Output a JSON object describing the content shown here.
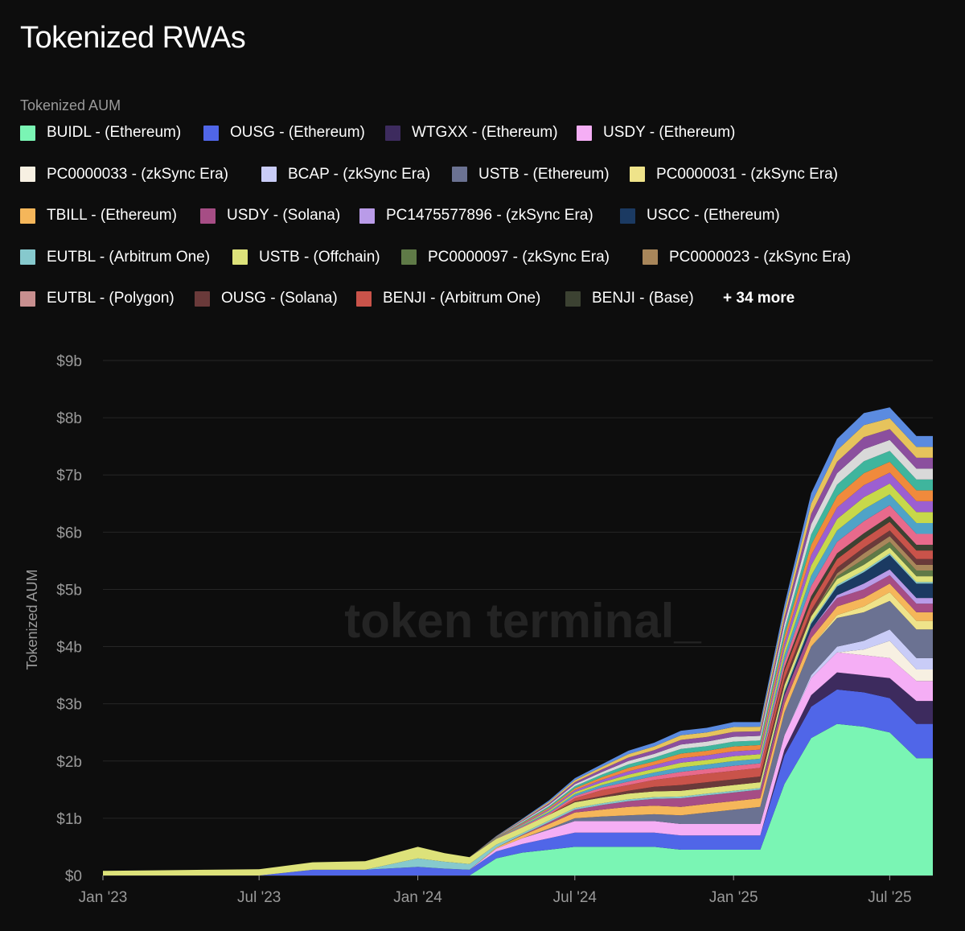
{
  "title": "Tokenized RWAs",
  "legend_title": "Tokenized AUM",
  "legend_more": "+ 34 more",
  "watermark": "token terminal_",
  "chart_data": {
    "type": "area",
    "stacked": true,
    "ylabel": "Tokenized AUM",
    "ylim": [
      0,
      9
    ],
    "y_ticks": [
      "$0",
      "$1b",
      "$2b",
      "$3b",
      "$4b",
      "$5b",
      "$6b",
      "$7b",
      "$8b",
      "$9b"
    ],
    "x_ticks": [
      "Jan '23",
      "Jul '23",
      "Jan '24",
      "Jul '24",
      "Jan '25",
      "Jul '25"
    ],
    "x": [
      "2023-01",
      "2023-03",
      "2023-05",
      "2023-07",
      "2023-09",
      "2023-11",
      "2024-01",
      "2024-02",
      "2024-03",
      "2024-04",
      "2024-05",
      "2024-06",
      "2024-07",
      "2024-08",
      "2024-09",
      "2024-10",
      "2024-11",
      "2024-12",
      "2025-01",
      "2025-02",
      "2025-03",
      "2025-04",
      "2025-05",
      "2025-06",
      "2025-07",
      "2025-08"
    ],
    "series": [
      {
        "name": "BUIDL - (Ethereum)",
        "color": "#7af5b4",
        "values": [
          0,
          0,
          0,
          0,
          0,
          0,
          0,
          0,
          0,
          0.3,
          0.4,
          0.45,
          0.5,
          0.5,
          0.5,
          0.5,
          0.45,
          0.45,
          0.45,
          0.45,
          1.6,
          2.4,
          2.65,
          2.6,
          2.5,
          2.05
        ]
      },
      {
        "name": "OUSG - (Ethereum)",
        "color": "#5066e8",
        "values": [
          0,
          0,
          0,
          0,
          0.1,
          0.1,
          0.15,
          0.12,
          0.1,
          0.12,
          0.15,
          0.2,
          0.25,
          0.25,
          0.25,
          0.25,
          0.25,
          0.25,
          0.25,
          0.25,
          0.5,
          0.55,
          0.6,
          0.6,
          0.6,
          0.6
        ]
      },
      {
        "name": "WTGXX - (Ethereum)",
        "color": "#3d2b5e",
        "values": [
          0,
          0,
          0,
          0,
          0,
          0,
          0,
          0,
          0,
          0,
          0,
          0,
          0,
          0,
          0,
          0,
          0,
          0,
          0,
          0,
          0.1,
          0.2,
          0.3,
          0.3,
          0.35,
          0.4
        ]
      },
      {
        "name": "USDY - (Ethereum)",
        "color": "#f5aef5",
        "values": [
          0,
          0,
          0,
          0,
          0,
          0,
          0,
          0,
          0,
          0.05,
          0.1,
          0.15,
          0.2,
          0.2,
          0.2,
          0.2,
          0.2,
          0.2,
          0.2,
          0.2,
          0.25,
          0.3,
          0.35,
          0.35,
          0.35,
          0.35
        ]
      },
      {
        "name": "PC0000033 - (zkSync Era)",
        "color": "#f7f0e2",
        "values": [
          0,
          0,
          0,
          0,
          0,
          0,
          0,
          0,
          0,
          0,
          0,
          0,
          0,
          0,
          0,
          0,
          0,
          0,
          0,
          0,
          0,
          0,
          0,
          0.1,
          0.3,
          0.2
        ]
      },
      {
        "name": "BCAP - (zkSync Era)",
        "color": "#c9ccf7",
        "values": [
          0,
          0,
          0,
          0,
          0,
          0,
          0,
          0,
          0,
          0,
          0,
          0,
          0,
          0,
          0,
          0,
          0,
          0,
          0,
          0,
          0,
          0.05,
          0.1,
          0.15,
          0.2,
          0.2
        ]
      },
      {
        "name": "USTB - (Ethereum)",
        "color": "#6b7292",
        "values": [
          0,
          0,
          0,
          0,
          0,
          0,
          0,
          0,
          0,
          0,
          0,
          0.02,
          0.05,
          0.08,
          0.1,
          0.12,
          0.15,
          0.2,
          0.25,
          0.3,
          0.4,
          0.5,
          0.5,
          0.5,
          0.5,
          0.5
        ]
      },
      {
        "name": "PC0000031 - (zkSync Era)",
        "color": "#efe38a",
        "values": [
          0,
          0,
          0,
          0,
          0,
          0,
          0,
          0,
          0,
          0,
          0,
          0,
          0,
          0,
          0,
          0,
          0,
          0,
          0,
          0,
          0,
          0,
          0.05,
          0.1,
          0.15,
          0.15
        ]
      },
      {
        "name": "TBILL - (Ethereum)",
        "color": "#f5b65a",
        "values": [
          0,
          0,
          0,
          0,
          0,
          0,
          0,
          0,
          0,
          0.02,
          0.05,
          0.08,
          0.1,
          0.12,
          0.15,
          0.15,
          0.15,
          0.15,
          0.15,
          0.15,
          0.15,
          0.15,
          0.15,
          0.15,
          0.15,
          0.15
        ]
      },
      {
        "name": "USDY - (Solana)",
        "color": "#a64d85",
        "values": [
          0,
          0,
          0,
          0,
          0,
          0,
          0,
          0,
          0,
          0,
          0.01,
          0.03,
          0.05,
          0.08,
          0.1,
          0.12,
          0.15,
          0.15,
          0.15,
          0.15,
          0.15,
          0.15,
          0.15,
          0.15,
          0.15,
          0.15
        ]
      },
      {
        "name": "PC1475577896 - (zkSync Era)",
        "color": "#b99be8",
        "values": [
          0,
          0,
          0,
          0,
          0,
          0,
          0,
          0,
          0,
          0,
          0,
          0,
          0,
          0,
          0,
          0,
          0,
          0,
          0,
          0,
          0,
          0,
          0.05,
          0.1,
          0.1,
          0.1
        ]
      },
      {
        "name": "USCC - (Ethereum)",
        "color": "#1b3a62",
        "values": [
          0,
          0,
          0,
          0,
          0,
          0,
          0,
          0,
          0,
          0,
          0,
          0,
          0,
          0,
          0,
          0,
          0,
          0,
          0,
          0,
          0.05,
          0.1,
          0.15,
          0.2,
          0.25,
          0.25
        ]
      },
      {
        "name": "EUTBL - (Arbitrum One)",
        "color": "#86c9cd",
        "values": [
          0,
          0,
          0,
          0,
          0,
          0,
          0.15,
          0.12,
          0.1,
          0.05,
          0.03,
          0.03,
          0.03,
          0.03,
          0.03,
          0.03,
          0.03,
          0.03,
          0.03,
          0.03,
          0.03,
          0.03,
          0.03,
          0.03,
          0.03,
          0.03
        ]
      },
      {
        "name": "USTB - (Offchain)",
        "color": "#dde27a",
        "values": [
          0.08,
          0.09,
          0.1,
          0.11,
          0.13,
          0.15,
          0.2,
          0.15,
          0.12,
          0.1,
          0.1,
          0.1,
          0.1,
          0.1,
          0.1,
          0.1,
          0.1,
          0.1,
          0.1,
          0.1,
          0.1,
          0.1,
          0.1,
          0.1,
          0.1,
          0.1
        ]
      },
      {
        "name": "PC0000097 - (zkSync Era)",
        "color": "#5f7a47",
        "values": [
          0,
          0,
          0,
          0,
          0,
          0,
          0,
          0,
          0,
          0,
          0,
          0,
          0,
          0,
          0,
          0,
          0,
          0,
          0,
          0,
          0,
          0,
          0.05,
          0.1,
          0.1,
          0.1
        ]
      },
      {
        "name": "PC0000023 - (zkSync Era)",
        "color": "#a8865a",
        "values": [
          0,
          0,
          0,
          0,
          0,
          0,
          0,
          0,
          0,
          0,
          0,
          0,
          0,
          0,
          0,
          0,
          0,
          0,
          0,
          0,
          0,
          0,
          0.05,
          0.1,
          0.1,
          0.1
        ]
      },
      {
        "name": "EUTBL - (Polygon)",
        "color": "#c88f8f",
        "values": [
          0,
          0,
          0,
          0,
          0,
          0,
          0,
          0,
          0,
          0,
          0,
          0,
          0,
          0,
          0,
          0,
          0,
          0,
          0,
          0,
          0,
          0,
          0,
          0,
          0,
          0
        ]
      },
      {
        "name": "OUSG - (Solana)",
        "color": "#6a3a3a",
        "values": [
          0,
          0,
          0,
          0,
          0,
          0,
          0,
          0,
          0,
          0,
          0,
          0,
          0.02,
          0.03,
          0.05,
          0.08,
          0.1,
          0.1,
          0.1,
          0.1,
          0.1,
          0.1,
          0.1,
          0.1,
          0.1,
          0.1
        ]
      },
      {
        "name": "BENJI - (Arbitrum One)",
        "color": "#c9534a",
        "values": [
          0,
          0,
          0,
          0,
          0,
          0,
          0,
          0,
          0,
          0,
          0,
          0,
          0.05,
          0.1,
          0.1,
          0.12,
          0.15,
          0.15,
          0.15,
          0.15,
          0.15,
          0.15,
          0.15,
          0.15,
          0.15,
          0.15
        ]
      },
      {
        "name": "BENJI - (Base)",
        "color": "#3c4232",
        "values": [
          0,
          0,
          0,
          0,
          0,
          0,
          0,
          0,
          0,
          0,
          0,
          0,
          0,
          0,
          0,
          0,
          0,
          0,
          0,
          0,
          0.05,
          0.1,
          0.1,
          0.1,
          0.1,
          0.1
        ]
      }
    ],
    "other_colors": [
      "#e86a8c",
      "#4fa3c7",
      "#c7d84a",
      "#9c5fd1",
      "#f08a3c",
      "#3fb59d",
      "#d9d9d9",
      "#8b4f9e",
      "#e6c35c",
      "#5b8be0"
    ],
    "other_values": [
      0,
      0,
      0,
      0,
      0,
      0,
      0,
      0,
      0,
      0.05,
      0.15,
      0.25,
      0.35,
      0.45,
      0.6,
      0.65,
      0.8,
      0.8,
      0.85,
      0.8,
      1.1,
      1.8,
      2.0,
      2.1,
      1.9,
      1.9
    ]
  }
}
